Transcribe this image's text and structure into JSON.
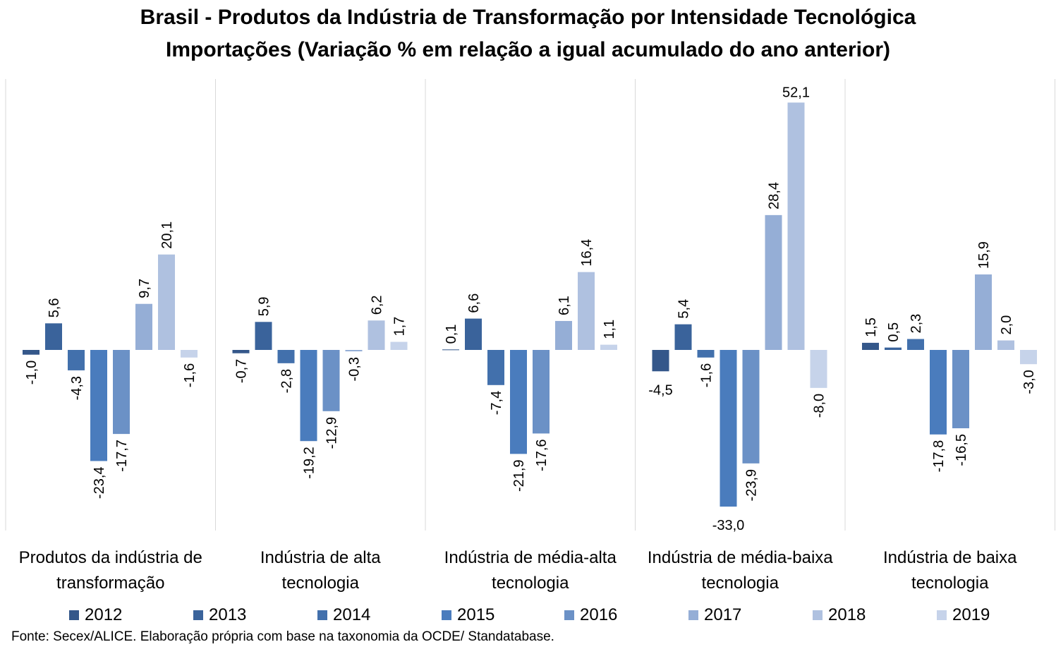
{
  "title_line1": "Brasil - Produtos da Indústria de Transformação por Intensidade Tecnológica",
  "title_line2": "Importações (Variação % em relação a igual acumulado do ano anterior)",
  "source": "Fonte: Secex/ALICE. Elaboração própria com base na taxonomia da OCDE/ Standatabase.",
  "chart_data": {
    "type": "bar",
    "title": "Brasil - Produtos da Indústria de Transformação por Intensidade Tecnológica — Importações (Variação % em relação a igual acumulado do ano anterior)",
    "categories": [
      [
        "Produtos da indústria de",
        "transformação"
      ],
      [
        "Indústria de alta",
        "tecnologia"
      ],
      [
        "Indústria de média-alta",
        "tecnologia"
      ],
      [
        "Indústria de média-baixa",
        "tecnologia"
      ],
      [
        "Indústria de baixa",
        "tecnologia"
      ]
    ],
    "series": [
      {
        "name": "2012",
        "color": "#34578a",
        "values": [
          -1.0,
          -0.7,
          0.1,
          -4.5,
          1.5
        ],
        "labels": [
          "-1,0",
          "-0,7",
          "0,1",
          "-4,5",
          "1,5"
        ]
      },
      {
        "name": "2013",
        "color": "#3a639b",
        "values": [
          5.6,
          5.9,
          6.6,
          5.4,
          0.5
        ],
        "labels": [
          "5,6",
          "5,9",
          "6,6",
          "5,4",
          "0,5"
        ]
      },
      {
        "name": "2014",
        "color": "#4270ac",
        "values": [
          -4.3,
          -2.8,
          -7.4,
          -1.6,
          2.3
        ],
        "labels": [
          "-4,3",
          "-2,8",
          "-7,4",
          "-1,6",
          "2,3"
        ]
      },
      {
        "name": "2015",
        "color": "#4a7cbd",
        "values": [
          -23.4,
          -19.2,
          -21.9,
          -33.0,
          -17.8
        ],
        "labels": [
          "-23,4",
          "-19,2",
          "-21,9",
          "-33,0",
          "-17,8"
        ]
      },
      {
        "name": "2016",
        "color": "#6b91c6",
        "values": [
          -17.7,
          -12.9,
          -17.6,
          -23.9,
          -16.5
        ],
        "labels": [
          "-17,7",
          "-12,9",
          "-17,6",
          "-23,9",
          "-16,5"
        ]
      },
      {
        "name": "2017",
        "color": "#95aed6",
        "values": [
          9.7,
          -0.3,
          6.1,
          28.4,
          15.9
        ],
        "labels": [
          "9,7",
          "-0,3",
          "6,1",
          "28,4",
          "15,9"
        ]
      },
      {
        "name": "2018",
        "color": "#afc1e0",
        "values": [
          20.1,
          6.2,
          16.4,
          52.1,
          2.0
        ],
        "labels": [
          "20,1",
          "6,2",
          "16,4",
          "52,1",
          "2,0"
        ]
      },
      {
        "name": "2019",
        "color": "#c6d3ea",
        "values": [
          -1.6,
          1.7,
          1.1,
          -8.0,
          -3.0
        ],
        "labels": [
          "-1,6",
          "1,7",
          "1,1",
          "-8,0",
          "-3,0"
        ]
      }
    ],
    "ylim": [
      -37.5,
      57.5
    ],
    "grid": false,
    "legend_position": "bottom",
    "value_labels": "rotated-vertical"
  }
}
